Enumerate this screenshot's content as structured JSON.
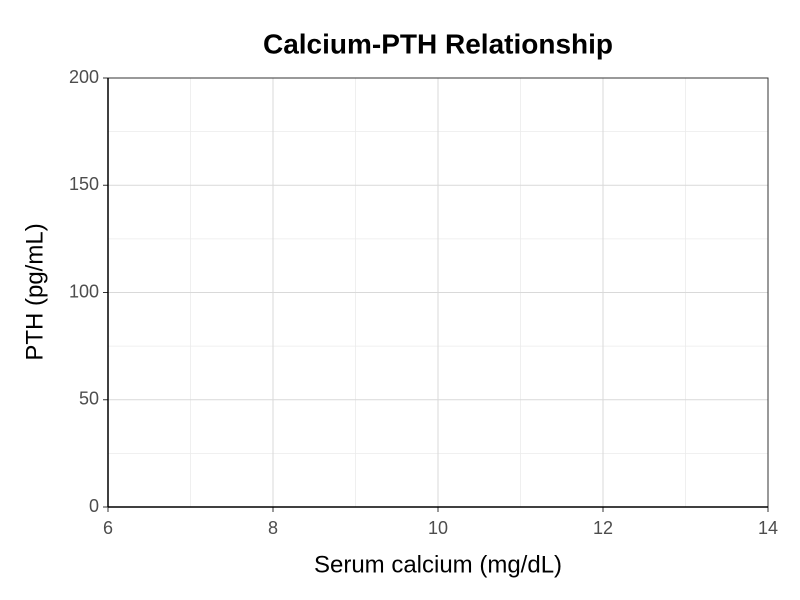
{
  "chart_data": {
    "type": "scatter",
    "title": "Calcium-PTH Relationship",
    "x_label": "Serum calcium (mg/dL)",
    "y_label": "PTH (pg/mL)",
    "xlim": [
      6,
      14
    ],
    "xticks": [
      6,
      8,
      10,
      12,
      14
    ],
    "ylim": [
      0,
      200
    ],
    "yticks": [
      0,
      50,
      100,
      150,
      200
    ],
    "grid": true
  }
}
